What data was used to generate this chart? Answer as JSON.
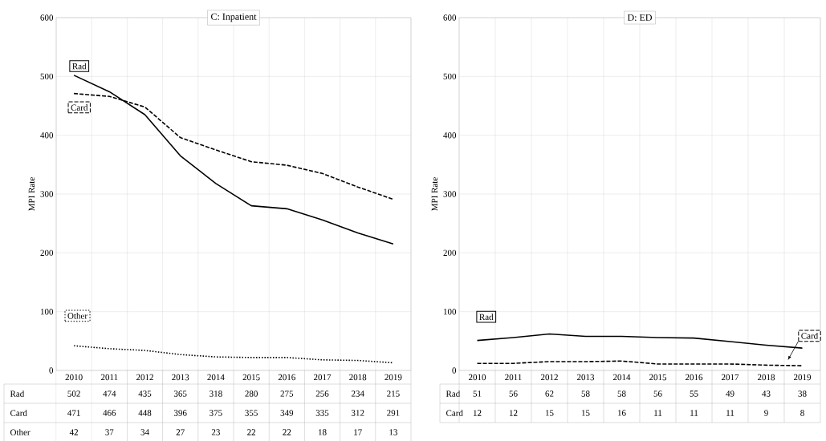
{
  "chart_data": [
    {
      "type": "line",
      "title": "C: Inpatient",
      "ylabel": "MPI Rate",
      "categories": [
        "2010",
        "2011",
        "2012",
        "2013",
        "2014",
        "2015",
        "2016",
        "2017",
        "2018",
        "2019"
      ],
      "series": [
        {
          "name": "Rad",
          "color": "#000000",
          "line_style": "solid",
          "values": [
            502,
            474,
            435,
            365,
            318,
            280,
            275,
            256,
            234,
            215
          ]
        },
        {
          "name": "Card",
          "color": "#000000",
          "line_style": "dashed",
          "values": [
            471,
            466,
            448,
            396,
            375,
            355,
            349,
            335,
            312,
            291
          ]
        },
        {
          "name": "Other",
          "color": "#000000",
          "line_style": "dotted",
          "values": [
            42,
            37,
            34,
            27,
            23,
            22,
            22,
            18,
            17,
            13
          ]
        }
      ],
      "ylim": [
        0,
        600
      ],
      "yticks": [
        0,
        100,
        200,
        300,
        400,
        500,
        600
      ],
      "grid": true,
      "data_labels": true
    },
    {
      "type": "line",
      "title": "D: ED",
      "ylabel": "MPI Rate",
      "categories": [
        "2010",
        "2011",
        "2012",
        "2013",
        "2014",
        "2015",
        "2016",
        "2017",
        "2018",
        "2019"
      ],
      "series": [
        {
          "name": "Rad",
          "color": "#000000",
          "line_style": "solid",
          "values": [
            51,
            56,
            62,
            58,
            58,
            56,
            55,
            49,
            43,
            38
          ]
        },
        {
          "name": "Card",
          "color": "#000000",
          "line_style": "dashed",
          "values": [
            12,
            12,
            15,
            15,
            16,
            11,
            11,
            11,
            9,
            8
          ]
        }
      ],
      "ylim": [
        0,
        600
      ],
      "yticks": [
        0,
        100,
        200,
        300,
        400,
        500,
        600
      ],
      "grid": true,
      "data_labels": true
    }
  ]
}
